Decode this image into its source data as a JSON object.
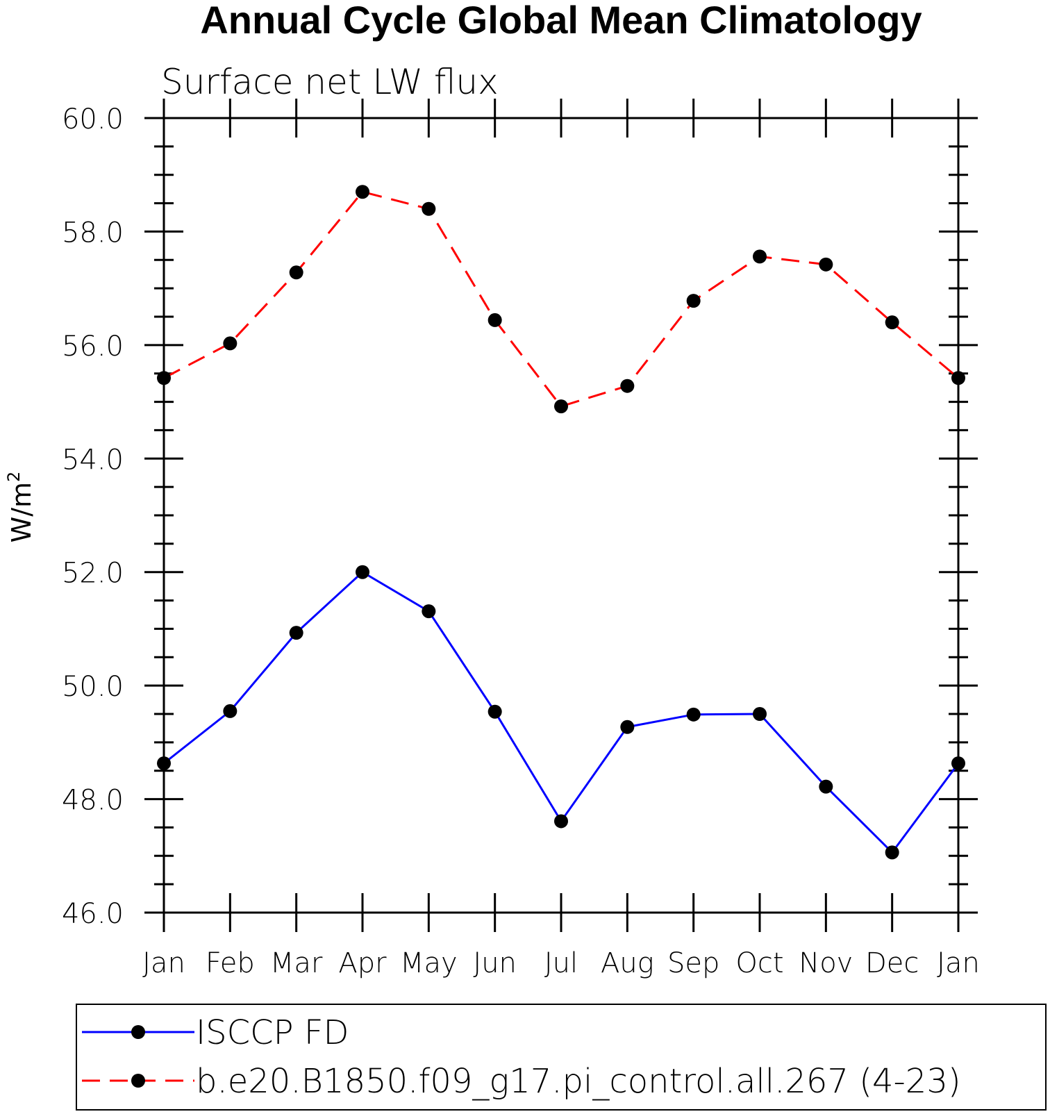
{
  "chart_data": {
    "type": "line",
    "title": "Annual Cycle Global Mean Climatology",
    "subtitle": "Surface net LW flux",
    "ylabel_main": "W/m",
    "ylabel_sup": "2",
    "categories": [
      "Jan",
      "Feb",
      "Mar",
      "Apr",
      "May",
      "Jun",
      "Jul",
      "Aug",
      "Sep",
      "Oct",
      "Nov",
      "Dec",
      "Jan"
    ],
    "ylim": [
      46.0,
      60.0
    ],
    "y_ticks": [
      46.0,
      48.0,
      50.0,
      52.0,
      54.0,
      56.0,
      58.0,
      60.0
    ],
    "y_tick_labels": [
      "46.0",
      "48.0",
      "50.0",
      "52.0",
      "54.0",
      "56.0",
      "58.0",
      "60.0"
    ],
    "grid": false,
    "legend_position": "bottom",
    "series": [
      {
        "name": "ISCCP FD",
        "color": "#0000ff",
        "dash": "solid",
        "values": [
          48.63,
          49.55,
          50.93,
          52.0,
          51.31,
          49.54,
          47.61,
          49.27,
          49.49,
          49.5,
          48.22,
          47.06,
          48.63
        ]
      },
      {
        "name": "b.e20.B1850.f09_g17.pi_control.all.267 (4-23)",
        "color": "#ff0000",
        "dash": "dashed",
        "values": [
          55.42,
          56.03,
          57.28,
          58.7,
          58.4,
          56.44,
          54.92,
          55.28,
          56.78,
          57.56,
          57.42,
          56.4,
          55.42
        ]
      }
    ]
  }
}
